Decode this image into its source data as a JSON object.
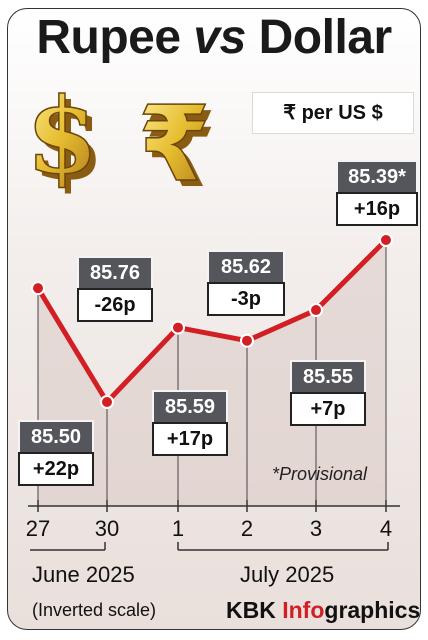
{
  "title": {
    "main": "Rupee",
    "vs": "vs",
    "tail": "Dollar"
  },
  "unit": "₹  per US $",
  "note": "*Provisional",
  "scale_note": "(Inverted scale)",
  "credit": {
    "brand": "KBK ",
    "accent": "Info",
    "rest": "graphics"
  },
  "months": [
    "June 2025",
    "July 2025"
  ],
  "colors": {
    "line": "#d21f26",
    "value_box": "#55565b",
    "accent": "#d21f26"
  },
  "icons": [
    "gold-dollar-sign-icon",
    "gold-rupee-sign-icon"
  ],
  "chart_data": {
    "type": "line",
    "inverted_y": true,
    "categories": [
      "27",
      "30",
      "1",
      "2",
      "3",
      "4"
    ],
    "values": [
      85.5,
      85.76,
      85.59,
      85.62,
      85.55,
      85.39
    ],
    "value_labels": [
      "85.50",
      "85.76",
      "85.59",
      "85.62",
      "85.55",
      "85.39*"
    ],
    "changes": [
      "+22p",
      "-26p",
      "+17p",
      "-3p",
      "+7p",
      "+16p"
    ],
    "ylim": [
      85.35,
      85.8
    ],
    "grid": false
  }
}
